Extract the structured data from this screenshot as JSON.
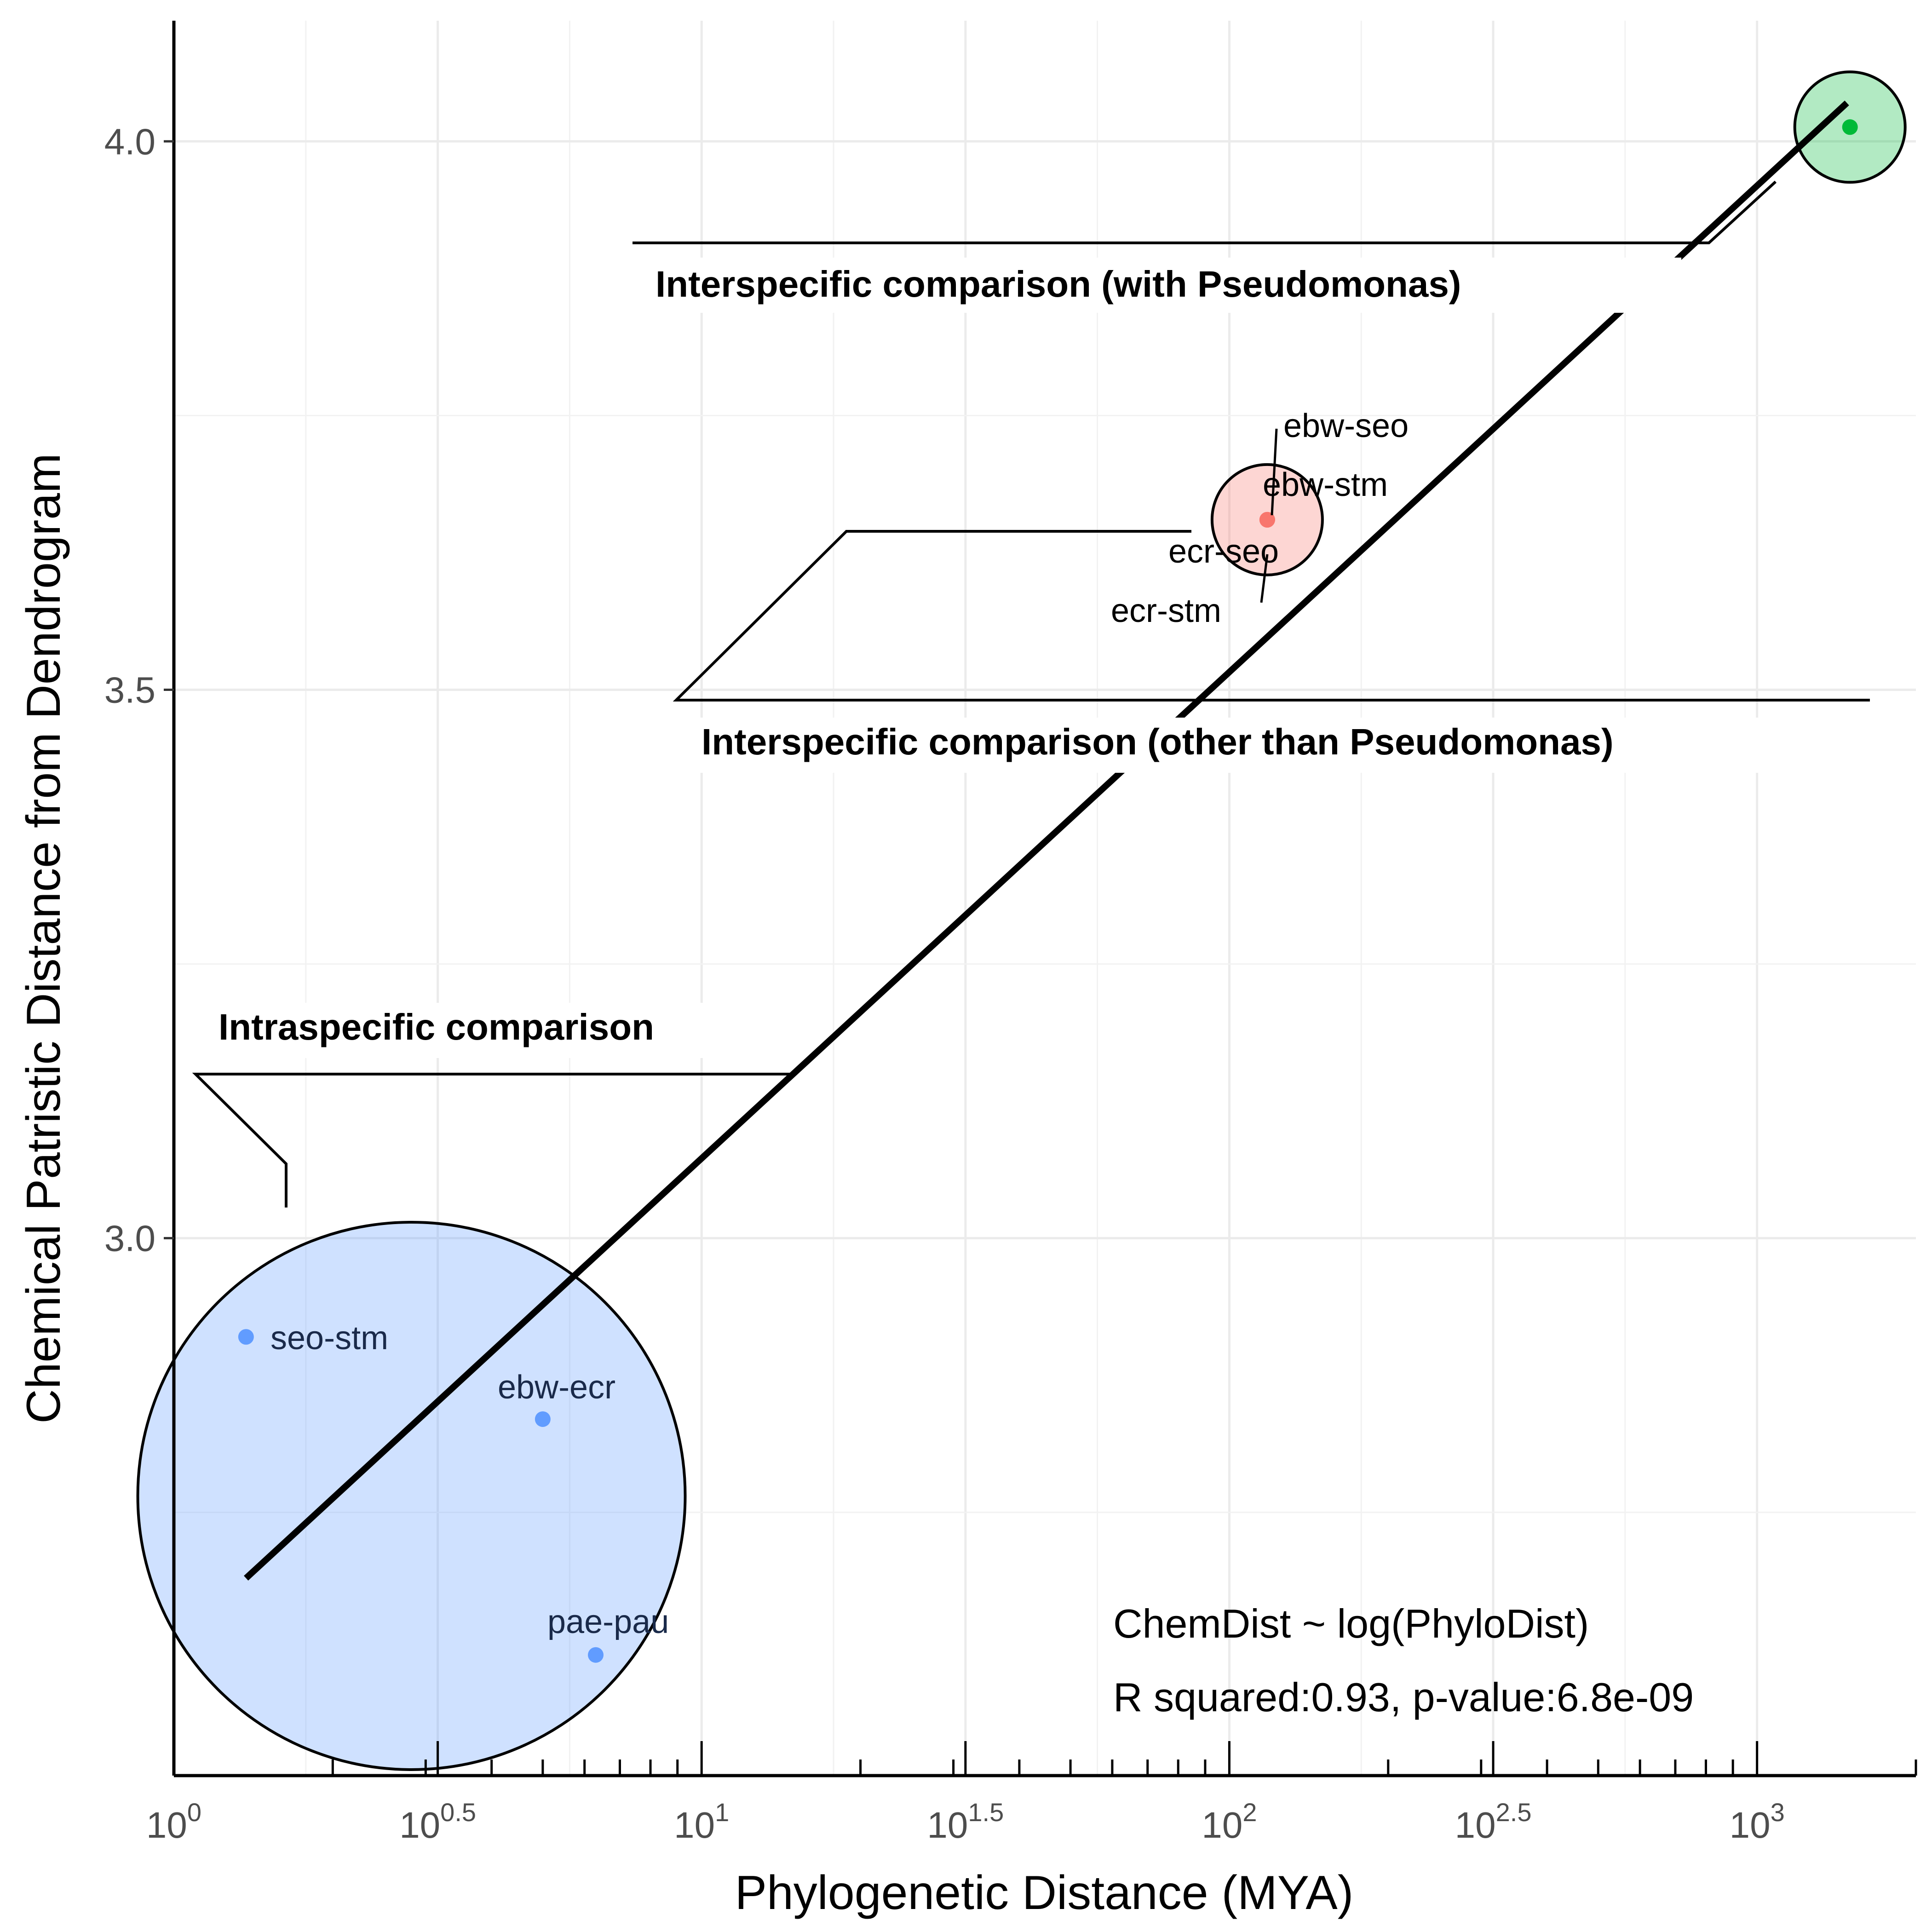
{
  "chart_data": {
    "type": "scatter",
    "xlabel": "Phylogenetic Distance (MYA)",
    "ylabel": "Chemical Patristic Distance from Dendrogram",
    "x_scale": "log10",
    "xlim": [
      1,
      2000
    ],
    "ylim": [
      2.51,
      4.11
    ],
    "x_ticks": [
      {
        "value": 1,
        "base": "10",
        "exp": "0"
      },
      {
        "value": 3.1623,
        "base": "10",
        "exp": "0.5"
      },
      {
        "value": 10,
        "base": "10",
        "exp": "1"
      },
      {
        "value": 31.623,
        "base": "10",
        "exp": "1.5"
      },
      {
        "value": 100,
        "base": "10",
        "exp": "2"
      },
      {
        "value": 316.23,
        "base": "10",
        "exp": "2.5"
      },
      {
        "value": 1000,
        "base": "10",
        "exp": "3"
      }
    ],
    "y_ticks": [
      {
        "value": 3.0,
        "label": "3.0"
      },
      {
        "value": 3.5,
        "label": "3.5"
      },
      {
        "value": 4.0,
        "label": "4.0"
      }
    ],
    "grid": true,
    "series": [
      {
        "color": "#619cff",
        "points": [
          {
            "x": 1.37,
            "y": 2.91,
            "label": "seo-stm"
          },
          {
            "x": 5.0,
            "y": 2.835,
            "label": "ebw-ecr"
          },
          {
            "x": 6.3,
            "y": 2.62,
            "label": "pae-pau"
          }
        ]
      },
      {
        "color": "#f8766d",
        "points": [
          {
            "x": 118,
            "y": 3.655,
            "label": "ebw-seo"
          },
          {
            "x": 118,
            "y": 3.655,
            "label": "ebw-stm"
          },
          {
            "x": 118,
            "y": 3.655,
            "label": "ecr-seo"
          },
          {
            "x": 118,
            "y": 3.655,
            "label": "ecr-stm"
          }
        ]
      },
      {
        "color": "#00ba38",
        "points": [
          {
            "x": 1500,
            "y": 4.013
          }
        ]
      }
    ],
    "groups": [
      {
        "label": "Intraspecific comparison",
        "fill": "#619cff",
        "center_x": 2.82,
        "center_y": 2.765
      },
      {
        "label": "Interspecific comparison (other than Pseudomonas)",
        "fill": "#f8766d",
        "center_x": 118,
        "center_y": 3.655
      },
      {
        "label": "Interspecific comparison (with Pseudomonas)",
        "fill": "#00ba38",
        "center_x": 1500,
        "center_y": 4.013
      }
    ],
    "fit_line": {
      "x": [
        1.37,
        1480
      ],
      "y": [
        2.69,
        4.035
      ]
    },
    "annotations": [
      "ChemDist ~ log(PhyloDist)",
      "R squared:0.93, p-value:6.8e-09"
    ]
  }
}
